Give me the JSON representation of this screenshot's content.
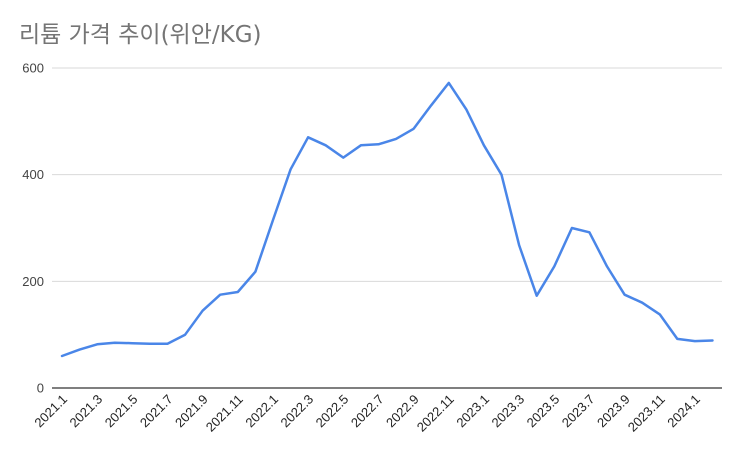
{
  "chart": {
    "title": "리튬 가격 추이(위안/KG)",
    "line_color": "#4a86e8",
    "grid_color": "#d9d9d9",
    "axis_color": "#333333"
  },
  "chart_data": {
    "type": "line",
    "title": "리튬 가격 추이(위안/KG)",
    "xlabel": "",
    "ylabel": "",
    "ylim": [
      0,
      600
    ],
    "yticks": [
      0,
      200,
      400,
      600
    ],
    "grid": true,
    "legend": "none",
    "x_tick_labels": [
      "2021.1",
      "2021.3",
      "2021.5",
      "2021.7",
      "2021.9",
      "2021.11",
      "2022.1",
      "2022.3",
      "2022.5",
      "2022.7",
      "2022.9",
      "2022.11",
      "2023.1",
      "2023.3",
      "2023.5",
      "2023.7",
      "2023.9",
      "2023.11",
      "2024.1"
    ],
    "categories": [
      "2021.1",
      "2021.2",
      "2021.3",
      "2021.4",
      "2021.5",
      "2021.6",
      "2021.7",
      "2021.8",
      "2021.9",
      "2021.10",
      "2021.11",
      "2021.12",
      "2022.1",
      "2022.2",
      "2022.3",
      "2022.4",
      "2022.5",
      "2022.6",
      "2022.7",
      "2022.8",
      "2022.9",
      "2022.10",
      "2022.11",
      "2022.12",
      "2023.1",
      "2023.2",
      "2023.3",
      "2023.4",
      "2023.5",
      "2023.6",
      "2023.7",
      "2023.8",
      "2023.9",
      "2023.10",
      "2023.11",
      "2023.12",
      "2024.1",
      "2024.2"
    ],
    "series": [
      {
        "name": "리튬 가격 (위안/KG)",
        "values": [
          60,
          72,
          82,
          85,
          84,
          83,
          83,
          100,
          145,
          175,
          180,
          218,
          315,
          410,
          470,
          455,
          432,
          455,
          457,
          467,
          486,
          530,
          572,
          522,
          455,
          400,
          268,
          173,
          228,
          300,
          292,
          228,
          175,
          160,
          138,
          92,
          88,
          89
        ]
      }
    ]
  }
}
